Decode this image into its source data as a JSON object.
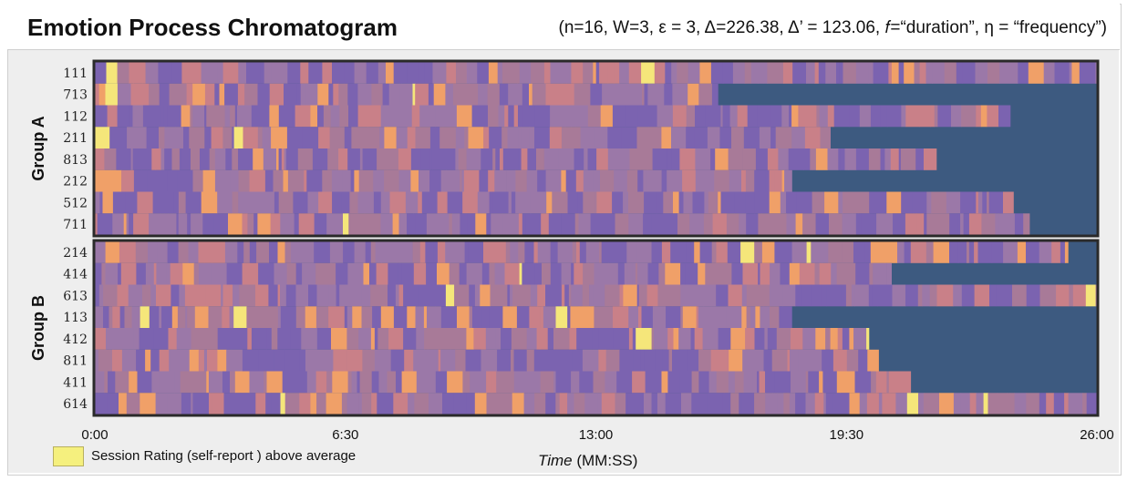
{
  "title": "Emotion Process Chromatogram",
  "subtitle": "(n=16, W=3, ε = 3, Δ=226.38, Δ’ = 123.06, 𝑓=“duration”, η = “frequency”)",
  "legend": {
    "label": "Session Rating (self-report ) above average",
    "color": "#f5f07e"
  },
  "xlabel_italic": "Time",
  "xlabel_rest": " (MM:SS)",
  "colors": {
    "background_end": "#3d5a80",
    "states": [
      "#7b63b0",
      "#9b78a8",
      "#a87a98",
      "#c98088",
      "#f0a068",
      "#f5e67a"
    ]
  },
  "chart_data": {
    "type": "heatmap",
    "x_ticks": [
      "0:00",
      "6:30",
      "13:00",
      "19:30",
      "26:00"
    ],
    "x_range_seconds": [
      0,
      1560
    ],
    "groups": [
      {
        "name": "Group A",
        "rows": [
          {
            "id": "111",
            "duration_s": 1560
          },
          {
            "id": "713",
            "duration_s": 970
          },
          {
            "id": "112",
            "duration_s": 1425
          },
          {
            "id": "211",
            "duration_s": 1145
          },
          {
            "id": "813",
            "duration_s": 1310
          },
          {
            "id": "212",
            "duration_s": 1085
          },
          {
            "id": "512",
            "duration_s": 1430
          },
          {
            "id": "711",
            "duration_s": 1455
          }
        ]
      },
      {
        "name": "Group B",
        "rows": [
          {
            "id": "214",
            "duration_s": 1515
          },
          {
            "id": "414",
            "duration_s": 1240
          },
          {
            "id": "613",
            "duration_s": 1560
          },
          {
            "id": "113",
            "duration_s": 1085
          },
          {
            "id": "412",
            "duration_s": 1205
          },
          {
            "id": "811",
            "duration_s": 1220
          },
          {
            "id": "411",
            "duration_s": 1270
          },
          {
            "id": "614",
            "duration_s": 1560
          }
        ]
      }
    ]
  }
}
